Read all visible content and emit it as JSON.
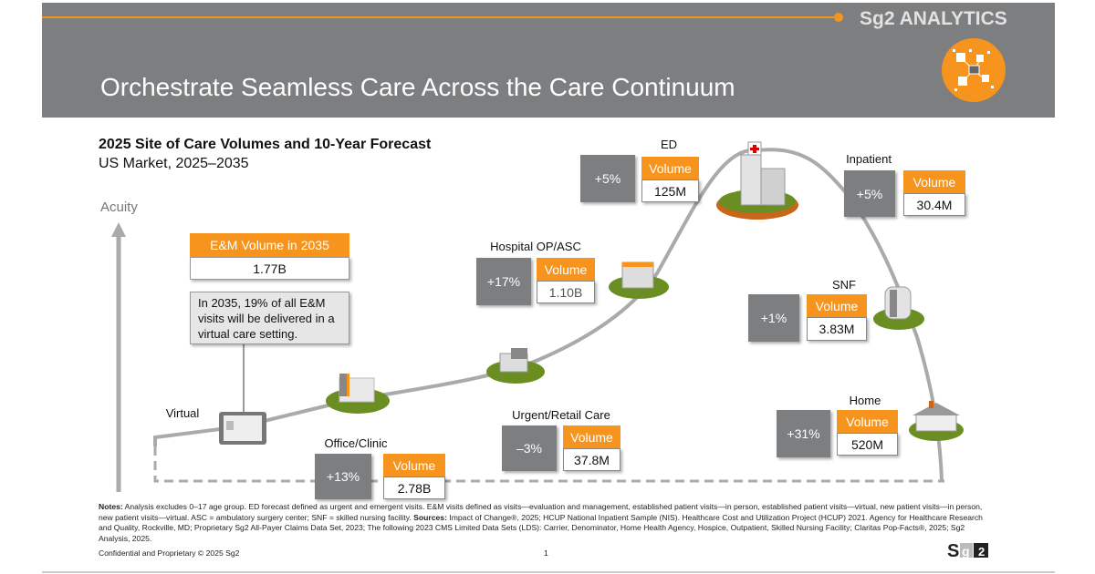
{
  "header": {
    "brand": "Sg2 ANALYTICS",
    "title": "Orchestrate Seamless Care Across the Care Continuum",
    "brand_color": "#f7941d",
    "header_color": "#7d7e80"
  },
  "chart": {
    "title": "2025 Site of Care Volumes and 10-Year Forecast",
    "subtitle": "US Market, 2025–2035",
    "axis_label": "Acuity",
    "volume_label": "Volume"
  },
  "em": {
    "header": "E&M Volume in 2035",
    "value": "1.77B",
    "callout": "In 2035, 19% of all E&M visits will be delivered in a virtual care setting."
  },
  "sites": [
    {
      "name": "Virtual"
    },
    {
      "name": "Office/Clinic",
      "change": "+13%",
      "volume": "2.78B"
    },
    {
      "name": "Urgent/Retail Care",
      "change": "–3%",
      "volume": "37.8M"
    },
    {
      "name": "Hospital OP/ASC",
      "change": "+17%",
      "volume": "1.10B"
    },
    {
      "name": "ED",
      "change": "+5%",
      "volume": "125M"
    },
    {
      "name": "Inpatient",
      "change": "+5%",
      "volume": "30.4M"
    },
    {
      "name": "SNF",
      "change": "+1%",
      "volume": "3.83M"
    },
    {
      "name": "Home",
      "change": "+31%",
      "volume": "520M"
    }
  ],
  "footer": {
    "notes_label": "Notes:",
    "notes": "Analysis excludes 0–17 age group. ED forecast defined as urgent and emergent visits. E&M visits defined as visits—evaluation and management, established patient visits—in person, established patient visits—virtual, new patient visits—in person, new patient visits—virtual. ASC = ambulatory surgery center; SNF = skilled nursing facility.",
    "sources_label": "Sources:",
    "sources": "Impact of Change®, 2025; HCUP National Inpatient Sample (NIS). Healthcare Cost and Utilization Project (HCUP) 2021. Agency for Healthcare Research and Quality, Rockville, MD; Proprietary Sg2 All-Payer Claims Data Set, 2023; The following 2023 CMS Limited Data Sets (LDS): Carrier, Denominator, Home Health Agency, Hospice, Outpatient, Skilled Nursing Facility; Claritas Pop-Facts®, 2025; Sg2 Analysis, 2025.",
    "confidential": "Confidential and Proprietary © 2025 Sg2",
    "page": "1",
    "logo": "Sg2"
  }
}
